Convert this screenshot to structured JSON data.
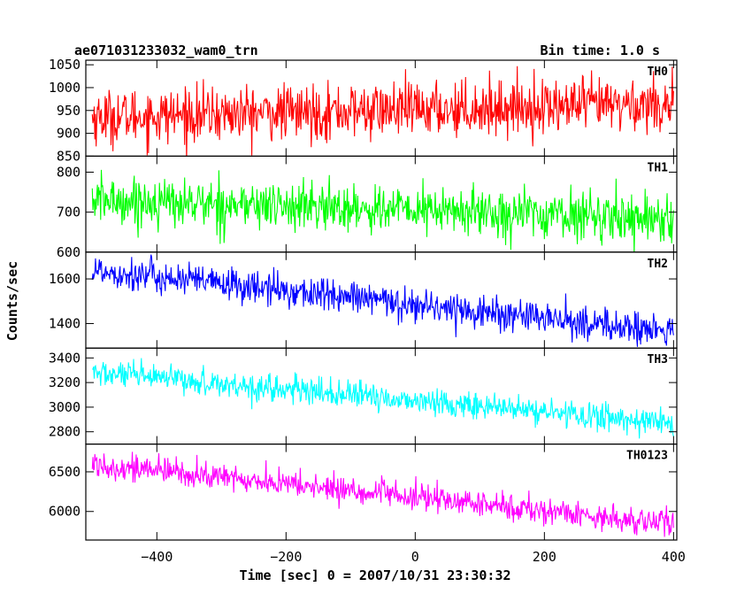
{
  "header": {
    "left_title": "ae071031233032_wam0_trn",
    "right_title": "Bin time: 1.0 s"
  },
  "chart_data": {
    "type": "line",
    "title": "ae071031233032_wam0_trn",
    "subtitle": "Bin time: 1.0 s",
    "xlabel": "Time [sec] 0 = 2007/10/31 23:30:32",
    "ylabel": "Counts/sec",
    "xlim": [
      -510,
      405
    ],
    "x_ticks": [
      -400,
      -200,
      0,
      200,
      400
    ],
    "x_tick_labels": [
      "−400",
      "−200",
      "0",
      "200",
      "400"
    ],
    "x_range_data": [
      -500,
      400
    ],
    "bin_time_s": 1.0,
    "grid": false,
    "panels": [
      {
        "name": "TH0",
        "color": "#ff0000",
        "ylim": [
          850,
          1060
        ],
        "y_ticks": [
          850,
          900,
          950,
          1000,
          1050
        ],
        "y_tick_labels": [
          "850",
          "900",
          "950",
          "1000",
          "1050"
        ],
        "trend_x": [
          -500,
          400
        ],
        "trend_y": [
          935,
          965
        ],
        "noise_sd": 30
      },
      {
        "name": "TH1",
        "color": "#00ff00",
        "ylim": [
          600,
          840
        ],
        "y_ticks": [
          600,
          700,
          800
        ],
        "y_tick_labels": [
          "600",
          "700",
          "800"
        ],
        "trend_x": [
          -500,
          400
        ],
        "trend_y": [
          730,
          685
        ],
        "noise_sd": 30
      },
      {
        "name": "TH2",
        "color": "#0000ff",
        "ylim": [
          1290,
          1720
        ],
        "y_ticks": [
          1400,
          1600
        ],
        "y_tick_labels": [
          "1400",
          "1600"
        ],
        "trend_x": [
          -500,
          400
        ],
        "trend_y": [
          1640,
          1360
        ],
        "noise_sd": 38
      },
      {
        "name": "TH3",
        "color": "#00ffff",
        "ylim": [
          2700,
          3480
        ],
        "y_ticks": [
          2800,
          3000,
          3200,
          3400
        ],
        "y_tick_labels": [
          "2800",
          "3000",
          "3200",
          "3400"
        ],
        "trend_x": [
          -500,
          400
        ],
        "trend_y": [
          3280,
          2870
        ],
        "noise_sd": 55
      },
      {
        "name": "TH0123",
        "color": "#ff00ff",
        "ylim": [
          5640,
          6850
        ],
        "y_ticks": [
          6000,
          6500
        ],
        "y_tick_labels": [
          "6000",
          "6500"
        ],
        "trend_x": [
          -500,
          400
        ],
        "trend_y": [
          6600,
          5840
        ],
        "noise_sd": 85
      }
    ]
  }
}
